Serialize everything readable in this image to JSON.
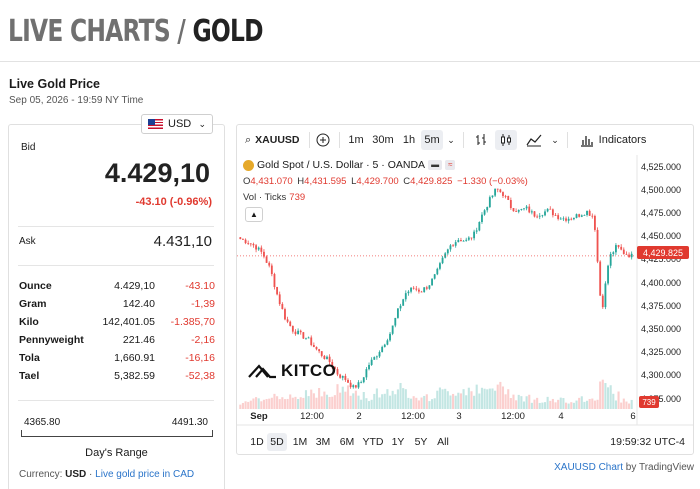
{
  "header": {
    "title_part1": "LIVE CHARTS",
    "title_slash": "/",
    "title_part2": "GOLD"
  },
  "section": {
    "title": "Live Gold Price",
    "timestamp": "Sep 05, 2026 - 19:59 NY Time"
  },
  "currency": {
    "selected": "USD",
    "icon": "us-flag-icon"
  },
  "quote": {
    "bid_label": "Bid",
    "bid_value": "4.429,10",
    "bid_change": "-43.10 (-0.96%)",
    "ask_label": "Ask",
    "ask_value": "4.431,10"
  },
  "units": [
    {
      "name": "Ounce",
      "price": "4.429,10",
      "change": "-43.10"
    },
    {
      "name": "Gram",
      "price": "142.40",
      "change": "-1,39"
    },
    {
      "name": "Kilo",
      "price": "142,401.05",
      "change": "-1.385,70"
    },
    {
      "name": "Pennyweight",
      "price": "221.46",
      "change": "-2,16"
    },
    {
      "name": "Tola",
      "price": "1,660.91",
      "change": "-16,16"
    },
    {
      "name": "Tael",
      "price": "5,382.59",
      "change": "-52,38"
    }
  ],
  "range": {
    "low": "4365.80",
    "high": "4491.30",
    "label": "Day's Range"
  },
  "footer": {
    "currency_label": "Currency:",
    "currency_value": "USD",
    "link": "Live gold price in CAD"
  },
  "chart_toolbar": {
    "symbol": "XAUUSD",
    "intervals": [
      "1m",
      "30m",
      "1h",
      "5m"
    ],
    "active_interval": "5m",
    "indicators": "Indicators"
  },
  "chart_legend": {
    "title": "Gold Spot / U.S. Dollar · 5 · OANDA",
    "o_label": "O",
    "o": "4,431.070",
    "h_label": "H",
    "h": "4,431.595",
    "l_label": "L",
    "l": "4,429.700",
    "c_label": "C",
    "c": "4,429.825",
    "change": "−1.330 (−0.03%)",
    "vol_label": "Vol · Ticks",
    "vol_value": "739"
  },
  "watermark": "KITCO",
  "colors": {
    "up": "#26a69a",
    "down": "#ef5350",
    "accent": "#e0392f",
    "link": "#2a74c9"
  },
  "chart_data": {
    "type": "candlestick",
    "title": "Gold Spot / U.S. Dollar · 5 · OANDA",
    "x_ticks": [
      "Sep",
      "12:00",
      "2",
      "12:00",
      "3",
      "12:00",
      "4",
      "6"
    ],
    "y_ticks": [
      "4,525.000",
      "4,500.000",
      "4,475.000",
      "4,450.000",
      "4,425.000",
      "4,400.000",
      "4,375.000",
      "4,350.000",
      "4,325.000",
      "4,300.000",
      "4,275.000"
    ],
    "ylim": [
      4265,
      4532
    ],
    "last_price": "4,429.825",
    "last_volume": "739",
    "close_path": [
      4448,
      4445,
      4440,
      4432,
      4415,
      4385,
      4362,
      4350,
      4345,
      4340,
      4330,
      4322,
      4315,
      4302,
      4297,
      4288,
      4293,
      4312,
      4322,
      4334,
      4348,
      4372,
      4390,
      4395,
      4392,
      4398,
      4410,
      4428,
      4442,
      4448,
      4446,
      4452,
      4472,
      4488,
      4502,
      4496,
      4482,
      4478,
      4481,
      4474,
      4476,
      4479,
      4473,
      4470,
      4471,
      4474,
      4478,
      4472,
      4368,
      4428,
      4440,
      4433,
      4429.8
    ],
    "volume_profile": [
      0.15,
      0.2,
      0.25,
      0.2,
      0.3,
      0.35,
      0.4,
      0.35,
      0.3,
      0.5,
      0.45,
      0.4,
      0.35,
      0.5,
      0.55,
      0.4,
      0.35,
      0.3,
      0.45,
      0.4,
      0.5,
      0.55,
      0.45,
      0.4,
      0.35,
      0.3,
      0.4,
      0.45,
      0.5,
      0.45,
      0.55,
      0.5,
      0.45,
      0.5,
      0.6,
      0.55,
      0.45,
      0.35,
      0.3,
      0.25,
      0.2,
      0.25,
      0.2,
      0.25,
      0.2,
      0.3,
      0.25,
      0.3,
      1.0,
      0.55,
      0.35,
      0.25,
      0.2
    ],
    "timeframes": [
      "1D",
      "5D",
      "1M",
      "3M",
      "6M",
      "YTD",
      "1Y",
      "5Y",
      "All"
    ],
    "active_timeframe": "5D",
    "clock": "19:59:32 UTC-4"
  },
  "attribution": {
    "link": "XAUUSD Chart",
    "suffix": "by TradingView"
  }
}
